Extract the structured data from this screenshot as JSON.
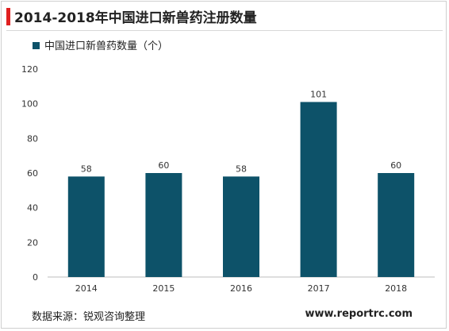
{
  "header": {
    "title": "2014-2018年中国进口新兽药注册数量"
  },
  "footer": {
    "source": "数据来源：锐观咨询整理",
    "url": "www.reportrc.com"
  },
  "colors": {
    "bar": "#0d5269",
    "accent": "#e02020"
  },
  "chart_data": {
    "type": "bar",
    "title": "",
    "xlabel": "",
    "ylabel": "",
    "categories": [
      "2014",
      "2015",
      "2016",
      "2017",
      "2018"
    ],
    "series": [
      {
        "name": "中国进口新兽药数量（个）",
        "values": [
          58,
          60,
          58,
          101,
          60
        ]
      }
    ],
    "ylim": [
      0,
      120
    ],
    "yticks": [
      0,
      20,
      40,
      60,
      80,
      100,
      120
    ],
    "data_labels": true,
    "grid": false,
    "legend": "top-left"
  }
}
